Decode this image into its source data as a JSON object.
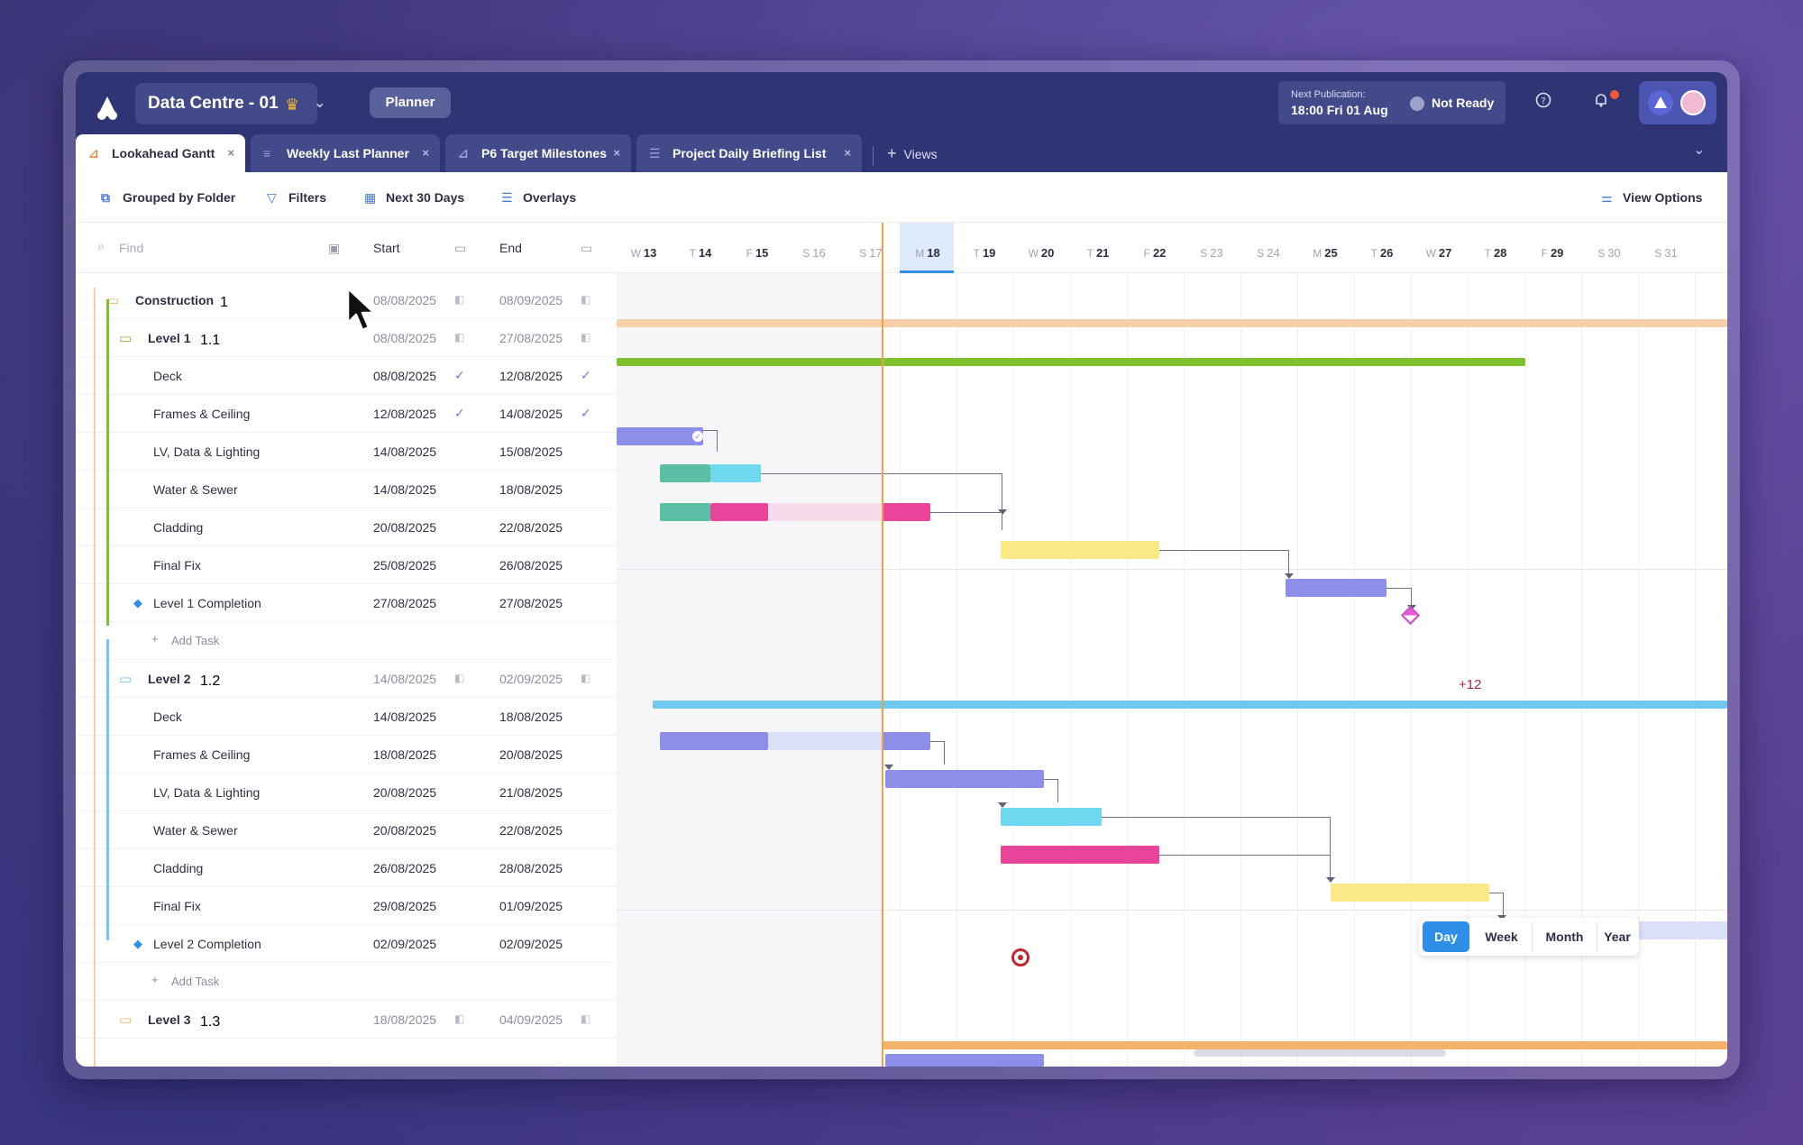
{
  "header": {
    "project_name": "Data Centre - 01",
    "planner_label": "Planner",
    "next_publication_label": "Next Publication:",
    "next_publication_value": "18:00 Fri 01 Aug",
    "status": "Not Ready"
  },
  "tabs": [
    {
      "label": "Lookahead Gantt",
      "active": true
    },
    {
      "label": "Weekly Last Planner"
    },
    {
      "label": "P6 Target Milestones"
    },
    {
      "label": "Project Daily Briefing List"
    }
  ],
  "views_label": "Views",
  "toolbar": {
    "grouped": "Grouped by Folder",
    "filters": "Filters",
    "range": "Next 30 Days",
    "overlays": "Overlays",
    "view_options": "View Options"
  },
  "grid": {
    "find_placeholder": "Find",
    "start_header": "Start",
    "end_header": "End",
    "add_task": "Add Task",
    "rows": [
      {
        "name": "Construction",
        "code": "1",
        "start": "08/08/2025",
        "end": "08/09/2025",
        "type": "folder"
      },
      {
        "name": "Level 1",
        "code": "1.1",
        "start": "08/08/2025",
        "end": "27/08/2025",
        "type": "subfolder"
      },
      {
        "name": "Deck",
        "start": "08/08/2025",
        "end": "12/08/2025",
        "type": "task",
        "done": true
      },
      {
        "name": "Frames & Ceiling",
        "start": "12/08/2025",
        "end": "14/08/2025",
        "type": "task",
        "done": true
      },
      {
        "name": "LV, Data & Lighting",
        "start": "14/08/2025",
        "end": "15/08/2025",
        "type": "task"
      },
      {
        "name": "Water & Sewer",
        "start": "14/08/2025",
        "end": "18/08/2025",
        "type": "task"
      },
      {
        "name": "Cladding",
        "start": "20/08/2025",
        "end": "22/08/2025",
        "type": "task"
      },
      {
        "name": "Final Fix",
        "start": "25/08/2025",
        "end": "26/08/2025",
        "type": "task"
      },
      {
        "name": "Level 1 Completion",
        "start": "27/08/2025",
        "end": "27/08/2025",
        "type": "milestone"
      },
      {
        "type": "add"
      },
      {
        "name": "Level 2",
        "code": "1.2",
        "start": "14/08/2025",
        "end": "02/09/2025",
        "type": "subfolder"
      },
      {
        "name": "Deck",
        "start": "14/08/2025",
        "end": "18/08/2025",
        "type": "task"
      },
      {
        "name": "Frames & Ceiling",
        "start": "18/08/2025",
        "end": "20/08/2025",
        "type": "task"
      },
      {
        "name": "LV, Data & Lighting",
        "start": "20/08/2025",
        "end": "21/08/2025",
        "type": "task"
      },
      {
        "name": "Water & Sewer",
        "start": "20/08/2025",
        "end": "22/08/2025",
        "type": "task"
      },
      {
        "name": "Cladding",
        "start": "26/08/2025",
        "end": "28/08/2025",
        "type": "task"
      },
      {
        "name": "Final Fix",
        "start": "29/08/2025",
        "end": "01/09/2025",
        "type": "task"
      },
      {
        "name": "Level 2 Completion",
        "start": "02/09/2025",
        "end": "02/09/2025",
        "type": "milestone"
      },
      {
        "type": "add"
      },
      {
        "name": "Level 3",
        "code": "1.3",
        "start": "18/08/2025",
        "end": "04/09/2025",
        "type": "subfolder"
      }
    ]
  },
  "timeline": {
    "days": [
      {
        "w": "W",
        "d": "13"
      },
      {
        "w": "T",
        "d": "14"
      },
      {
        "w": "F",
        "d": "15"
      },
      {
        "w": "S",
        "d": "16",
        "we": true
      },
      {
        "w": "S",
        "d": "17",
        "we": true
      },
      {
        "w": "M",
        "d": "18",
        "today": true
      },
      {
        "w": "T",
        "d": "19"
      },
      {
        "w": "W",
        "d": "20"
      },
      {
        "w": "T",
        "d": "21"
      },
      {
        "w": "F",
        "d": "22"
      },
      {
        "w": "S",
        "d": "23",
        "we": true
      },
      {
        "w": "S",
        "d": "24",
        "we": true
      },
      {
        "w": "M",
        "d": "25"
      },
      {
        "w": "T",
        "d": "26"
      },
      {
        "w": "W",
        "d": "27"
      },
      {
        "w": "T",
        "d": "28"
      },
      {
        "w": "F",
        "d": "29"
      },
      {
        "w": "S",
        "d": "30",
        "we": true
      },
      {
        "w": "S",
        "d": "31",
        "we": true
      }
    ],
    "hidden_count": "+12"
  },
  "scale": {
    "day": "Day",
    "week": "Week",
    "month": "Month",
    "year": "Year",
    "selected": "Day"
  },
  "colors": {
    "brand": "#2e3474",
    "accent": "#2f8fe8",
    "today": "#f0a24a",
    "level1": "#7dc12e",
    "level2": "#6fc8ee",
    "level3": "#f5b36a",
    "construction": "#f7cfa8"
  }
}
